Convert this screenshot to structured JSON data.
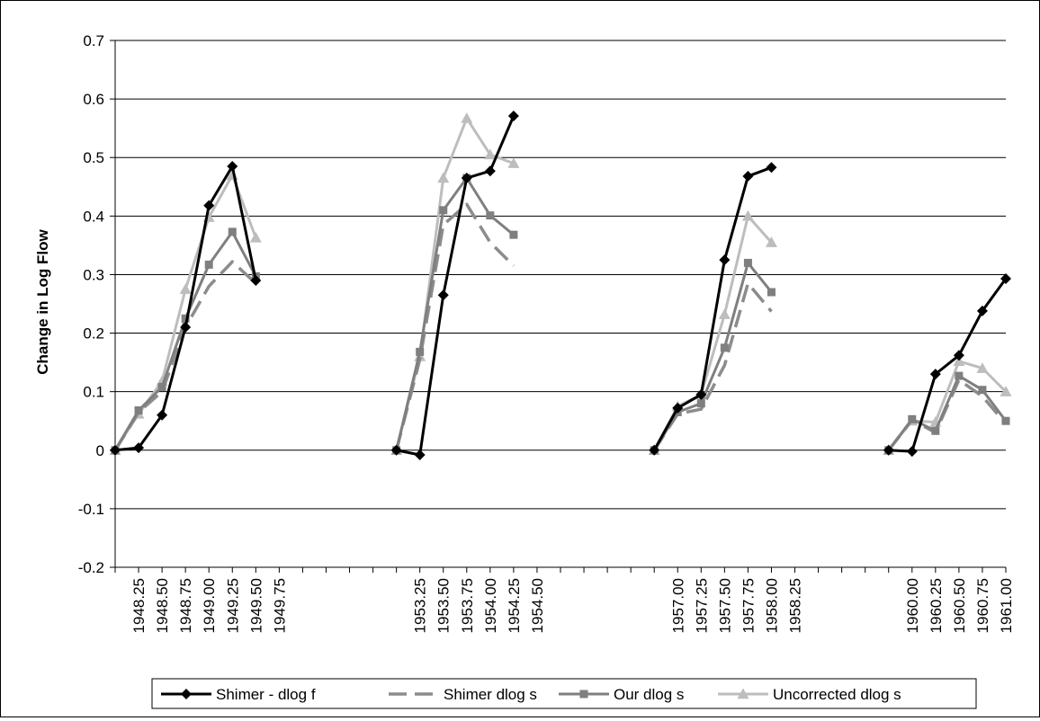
{
  "chart_data": {
    "type": "line",
    "title": "",
    "xlabel": "",
    "ylabel": "Change in Log Flow",
    "ylim": [
      -0.2,
      0.7
    ],
    "yticks": [
      "0.7",
      "0.6",
      "0.5",
      "0.4",
      "0.3",
      "0.2",
      "0.1",
      "0",
      "-0.1",
      "-0.2"
    ],
    "grid": "horizontal",
    "legend_position": "bottom",
    "categories": [
      "",
      "1948.25",
      "1948.50",
      "1948.75",
      "1949.00",
      "1949.25",
      "1949.50",
      "1949.75",
      "",
      "",
      "",
      "",
      "",
      "1953.25",
      "1953.50",
      "1953.75",
      "1954.00",
      "1954.25",
      "1954.50",
      "",
      "",
      "",
      "",
      "",
      "1957.00",
      "1957.25",
      "1957.50",
      "1957.75",
      "1958.00",
      "1958.25",
      "",
      "",
      "",
      "",
      "1960.00",
      "1960.25",
      "1960.50",
      "1960.75",
      "1961.00"
    ],
    "series": [
      {
        "name": "Shimer - dlog f",
        "color": "#000000",
        "marker": "diamond",
        "dash": "solid",
        "segments": [
          {
            "start": 0,
            "values": [
              0,
              0.004,
              0.06,
              0.21,
              0.418,
              0.485,
              0.29
            ]
          },
          {
            "start": 12,
            "values": [
              0,
              -0.008,
              0.265,
              0.465,
              0.477,
              0.571
            ]
          },
          {
            "start": 23,
            "values": [
              0,
              0.072,
              0.095,
              0.325,
              0.468,
              0.483
            ]
          },
          {
            "start": 33,
            "values": [
              0,
              -0.002,
              0.13,
              0.162,
              0.238,
              0.293
            ]
          }
        ]
      },
      {
        "name": "Shimer dlog s",
        "color": "#8c8c8c",
        "marker": "none",
        "dash": "dashed",
        "segments": [
          {
            "start": 0,
            "values": [
              0,
              0.065,
              0.1,
              0.21,
              0.28,
              0.322,
              0.285
            ]
          },
          {
            "start": 12,
            "values": [
              0,
              0.155,
              0.385,
              0.42,
              0.355,
              0.315
            ]
          },
          {
            "start": 23,
            "values": [
              0,
              0.062,
              0.07,
              0.145,
              0.285,
              0.237
            ]
          },
          {
            "start": 33,
            "values": [
              0,
              0.052,
              0.03,
              0.12,
              0.092,
              0.045
            ]
          }
        ]
      },
      {
        "name": "Our dlog s",
        "color": "#7f7f7f",
        "marker": "square",
        "dash": "solid",
        "segments": [
          {
            "start": 0,
            "values": [
              0,
              0.068,
              0.108,
              0.225,
              0.317,
              0.373,
              0.297
            ]
          },
          {
            "start": 12,
            "values": [
              0,
              0.168,
              0.41,
              0.465,
              0.401,
              0.368
            ]
          },
          {
            "start": 23,
            "values": [
              0,
              0.065,
              0.08,
              0.175,
              0.32,
              0.27
            ]
          },
          {
            "start": 33,
            "values": [
              0,
              0.053,
              0.033,
              0.127,
              0.103,
              0.05
            ]
          }
        ]
      },
      {
        "name": "Uncorrected dlog s",
        "color": "#bdbdbd",
        "marker": "triangle",
        "dash": "solid",
        "segments": [
          {
            "start": 0,
            "values": [
              0,
              0.062,
              0.118,
              0.275,
              0.398,
              0.47,
              0.363
            ]
          },
          {
            "start": 12,
            "values": [
              0,
              0.16,
              0.465,
              0.567,
              0.505,
              0.49
            ]
          },
          {
            "start": 23,
            "values": [
              0,
              0.075,
              0.095,
              0.232,
              0.4,
              0.355
            ]
          },
          {
            "start": 33,
            "values": [
              0,
              0.05,
              0.048,
              0.152,
              0.14,
              0.1
            ]
          }
        ]
      }
    ]
  }
}
